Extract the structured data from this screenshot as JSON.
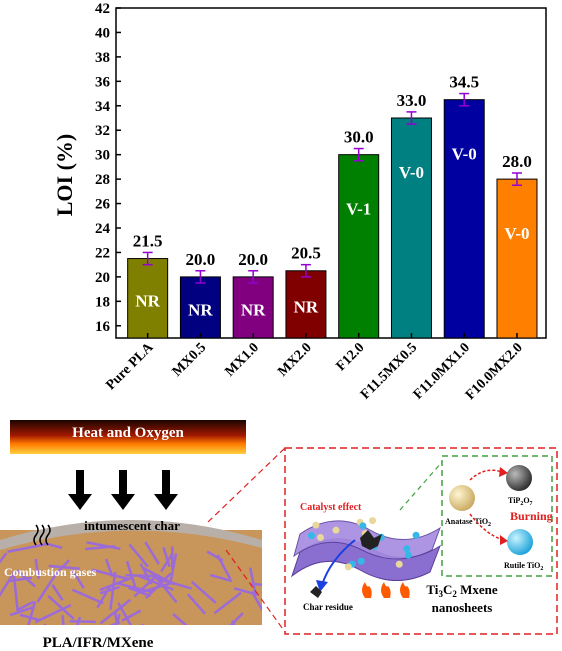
{
  "chart_data": {
    "type": "bar",
    "ylabel": "LOI (%)",
    "ylim": [
      15,
      42
    ],
    "yticks": [
      16,
      18,
      20,
      22,
      24,
      26,
      28,
      30,
      32,
      34,
      36,
      38,
      40,
      42
    ],
    "categories": [
      "Pure PLA",
      "MX0.5",
      "MX1.0",
      "MX2.0",
      "F12.0",
      "F11.5MX0.5",
      "F11.0MX1.0",
      "F10.0MX2.0"
    ],
    "values": [
      21.5,
      20.0,
      20.0,
      20.5,
      30.0,
      33.0,
      34.5,
      28.0
    ],
    "value_labels": [
      "21.5",
      "20.0",
      "20.0",
      "20.5",
      "30.0",
      "33.0",
      "34.5",
      "28.0"
    ],
    "errors": [
      0.5,
      0.5,
      0.5,
      0.5,
      0.5,
      0.5,
      0.5,
      0.5
    ],
    "ratings": [
      "NR",
      "NR",
      "NR",
      "NR",
      "V-1",
      "V-0",
      "V-0",
      "V-0"
    ],
    "bar_colors": [
      "#808000",
      "#000080",
      "#800080",
      "#800000",
      "#008000",
      "#008080",
      "#0000a0",
      "#ff8000"
    ],
    "error_color": "#9400d3",
    "grid": false
  },
  "scheme": {
    "heat_label": "Heat and Oxygen",
    "char_label": "intumescent char",
    "gas_label": "Combustion gases",
    "material_label": "PLA/IFR/MXene",
    "catalyst_label": "Catalyst effect",
    "char_residue_label": "Char residue",
    "burning_label": "Burning",
    "anatase_label": "Anatase TiO",
    "anatase_sub": "2",
    "rutile_label": "Rutile TiO",
    "rutile_sub": "2",
    "tip_label_a": "TiP",
    "tip_sub_a": "2",
    "tip_label_b": "O",
    "tip_sub_b": "7",
    "mxene_line1_a": "Ti",
    "mxene_line1_sub_a": "3",
    "mxene_line1_b": "C",
    "mxene_line1_sub_b": "2",
    "mxene_line1_c": " Mxene",
    "mxene_line2": "nanosheets",
    "colors": {
      "dashed_red": "#e02020",
      "dashed_green": "#40a040",
      "polymer": "#c8955a",
      "char": "#b8b0a8",
      "fiber": "#9b6bd9",
      "sheet": "#8060c0"
    }
  }
}
